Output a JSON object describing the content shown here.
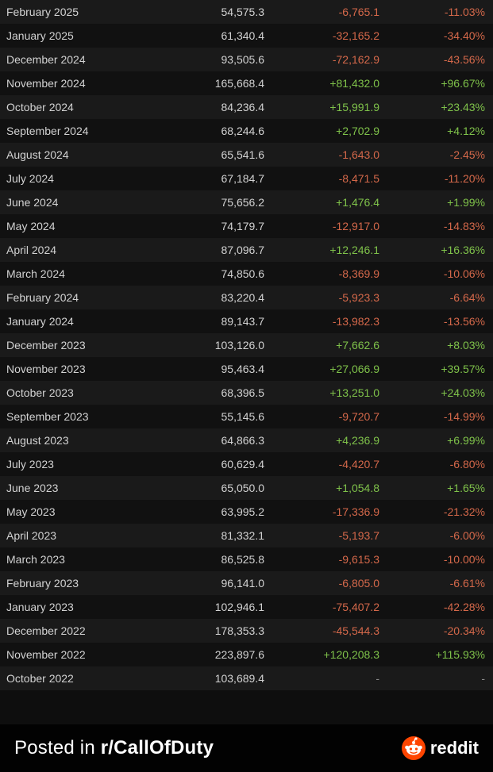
{
  "colors": {
    "positive": "#7fc24a",
    "negative": "#d4684a",
    "text": "#d2d2d2",
    "row_odd": "#1a1a1a",
    "row_even": "#111111",
    "background": "#0e0e0e",
    "reddit_orange": "#ff4500"
  },
  "table": {
    "columns": [
      "month",
      "value",
      "delta",
      "pct"
    ],
    "rows": [
      {
        "month": "February 2025",
        "value": "54,575.3",
        "delta": "-6,765.1",
        "pct": "-11.03%",
        "sign": "neg"
      },
      {
        "month": "January 2025",
        "value": "61,340.4",
        "delta": "-32,165.2",
        "pct": "-34.40%",
        "sign": "neg"
      },
      {
        "month": "December 2024",
        "value": "93,505.6",
        "delta": "-72,162.9",
        "pct": "-43.56%",
        "sign": "neg"
      },
      {
        "month": "November 2024",
        "value": "165,668.4",
        "delta": "+81,432.0",
        "pct": "+96.67%",
        "sign": "pos"
      },
      {
        "month": "October 2024",
        "value": "84,236.4",
        "delta": "+15,991.9",
        "pct": "+23.43%",
        "sign": "pos"
      },
      {
        "month": "September 2024",
        "value": "68,244.6",
        "delta": "+2,702.9",
        "pct": "+4.12%",
        "sign": "pos"
      },
      {
        "month": "August 2024",
        "value": "65,541.6",
        "delta": "-1,643.0",
        "pct": "-2.45%",
        "sign": "neg"
      },
      {
        "month": "July 2024",
        "value": "67,184.7",
        "delta": "-8,471.5",
        "pct": "-11.20%",
        "sign": "neg"
      },
      {
        "month": "June 2024",
        "value": "75,656.2",
        "delta": "+1,476.4",
        "pct": "+1.99%",
        "sign": "pos"
      },
      {
        "month": "May 2024",
        "value": "74,179.7",
        "delta": "-12,917.0",
        "pct": "-14.83%",
        "sign": "neg"
      },
      {
        "month": "April 2024",
        "value": "87,096.7",
        "delta": "+12,246.1",
        "pct": "+16.36%",
        "sign": "pos"
      },
      {
        "month": "March 2024",
        "value": "74,850.6",
        "delta": "-8,369.9",
        "pct": "-10.06%",
        "sign": "neg"
      },
      {
        "month": "February 2024",
        "value": "83,220.4",
        "delta": "-5,923.3",
        "pct": "-6.64%",
        "sign": "neg"
      },
      {
        "month": "January 2024",
        "value": "89,143.7",
        "delta": "-13,982.3",
        "pct": "-13.56%",
        "sign": "neg"
      },
      {
        "month": "December 2023",
        "value": "103,126.0",
        "delta": "+7,662.6",
        "pct": "+8.03%",
        "sign": "pos"
      },
      {
        "month": "November 2023",
        "value": "95,463.4",
        "delta": "+27,066.9",
        "pct": "+39.57%",
        "sign": "pos"
      },
      {
        "month": "October 2023",
        "value": "68,396.5",
        "delta": "+13,251.0",
        "pct": "+24.03%",
        "sign": "pos"
      },
      {
        "month": "September 2023",
        "value": "55,145.6",
        "delta": "-9,720.7",
        "pct": "-14.99%",
        "sign": "neg"
      },
      {
        "month": "August 2023",
        "value": "64,866.3",
        "delta": "+4,236.9",
        "pct": "+6.99%",
        "sign": "pos"
      },
      {
        "month": "July 2023",
        "value": "60,629.4",
        "delta": "-4,420.7",
        "pct": "-6.80%",
        "sign": "neg"
      },
      {
        "month": "June 2023",
        "value": "65,050.0",
        "delta": "+1,054.8",
        "pct": "+1.65%",
        "sign": "pos"
      },
      {
        "month": "May 2023",
        "value": "63,995.2",
        "delta": "-17,336.9",
        "pct": "-21.32%",
        "sign": "neg"
      },
      {
        "month": "April 2023",
        "value": "81,332.1",
        "delta": "-5,193.7",
        "pct": "-6.00%",
        "sign": "neg"
      },
      {
        "month": "March 2023",
        "value": "86,525.8",
        "delta": "-9,615.3",
        "pct": "-10.00%",
        "sign": "neg"
      },
      {
        "month": "February 2023",
        "value": "96,141.0",
        "delta": "-6,805.0",
        "pct": "-6.61%",
        "sign": "neg"
      },
      {
        "month": "January 2023",
        "value": "102,946.1",
        "delta": "-75,407.2",
        "pct": "-42.28%",
        "sign": "neg"
      },
      {
        "month": "December 2022",
        "value": "178,353.3",
        "delta": "-45,544.3",
        "pct": "-20.34%",
        "sign": "neg"
      },
      {
        "month": "November 2022",
        "value": "223,897.6",
        "delta": "+120,208.3",
        "pct": "+115.93%",
        "sign": "pos"
      },
      {
        "month": "October 2022",
        "value": "103,689.4",
        "delta": "-",
        "pct": "-",
        "sign": "dash"
      }
    ]
  },
  "footer": {
    "prefix": "Posted in ",
    "subreddit": "r/CallOfDuty",
    "brand": "reddit"
  }
}
